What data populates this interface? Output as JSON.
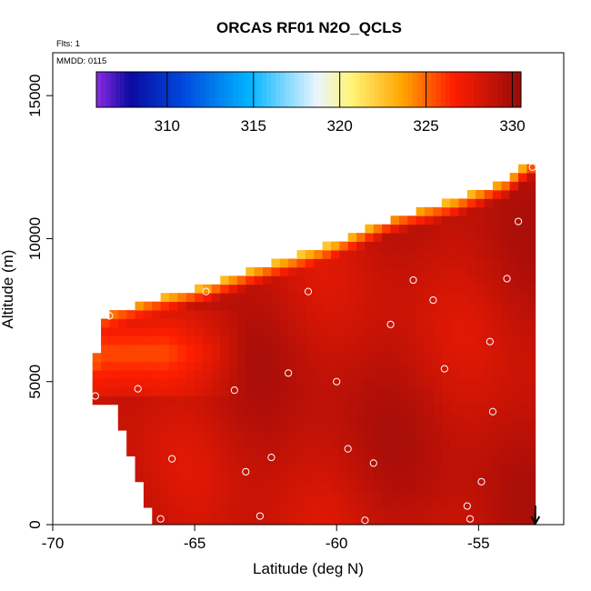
{
  "chart_data": {
    "type": "heatmap",
    "title": "ORCAS RF01 N2O_QCLS",
    "annotations": {
      "flights": "Flts: 1",
      "date": "MMDD: 0115"
    },
    "xlabel": "Latitude (deg N)",
    "ylabel": "Altitude (m)",
    "xlim": [
      -70,
      -52
    ],
    "ylim": [
      0,
      16500
    ],
    "x_ticks": [
      -70,
      -65,
      -60,
      -55
    ],
    "x_tick_labels": [
      "-70",
      "-65",
      "-60",
      "-55"
    ],
    "y_ticks": [
      0,
      5000,
      10000,
      15000
    ],
    "y_tick_labels": [
      "0",
      "5000",
      "10000",
      "15000"
    ],
    "colorbar": {
      "range": [
        305.9,
        330.5
      ],
      "ticks": [
        310,
        315,
        320,
        325,
        330
      ],
      "tick_labels": [
        "310",
        "315",
        "320",
        "325",
        "330"
      ],
      "orientation": "horizontal",
      "position": "top"
    },
    "domain_envelope": {
      "lat_min": -68.6,
      "lat_max": -53.2,
      "top_altitude": [
        [
          -68.6,
          4500
        ],
        [
          -68.3,
          7300
        ],
        [
          -66.5,
          7850
        ],
        [
          -64.5,
          8400
        ],
        [
          -62,
          9250
        ],
        [
          -60,
          9950
        ],
        [
          -58,
          10750
        ],
        [
          -56,
          11300
        ],
        [
          -54,
          12050
        ],
        [
          -53.2,
          12700
        ]
      ]
    },
    "field_model": {
      "base_n2o": 328.8,
      "strat_tropopause_offset_m": 600,
      "strat_gradient_ppb_per_m": 0.0105,
      "low_band": {
        "value": 325.5,
        "lat_from": -69,
        "lat_to": -63,
        "alt_from": 4500,
        "alt_to": 7500
      }
    },
    "flight_points": [
      {
        "lat": -66.2,
        "alt": 200
      },
      {
        "lat": -62.7,
        "alt": 300
      },
      {
        "lat": -59.0,
        "alt": 150
      },
      {
        "lat": -55.3,
        "alt": 200
      },
      {
        "lat": -55.4,
        "alt": 650
      },
      {
        "lat": -54.9,
        "alt": 1500
      },
      {
        "lat": -65.8,
        "alt": 2300
      },
      {
        "lat": -63.2,
        "alt": 1850
      },
      {
        "lat": -62.3,
        "alt": 2350
      },
      {
        "lat": -59.6,
        "alt": 2650
      },
      {
        "lat": -58.7,
        "alt": 2150
      },
      {
        "lat": -54.5,
        "alt": 3950
      },
      {
        "lat": -68.5,
        "alt": 4500
      },
      {
        "lat": -67.0,
        "alt": 4750
      },
      {
        "lat": -63.6,
        "alt": 4700
      },
      {
        "lat": -61.7,
        "alt": 5300
      },
      {
        "lat": -60.0,
        "alt": 5000
      },
      {
        "lat": -56.2,
        "alt": 5450
      },
      {
        "lat": -54.6,
        "alt": 6400
      },
      {
        "lat": -68.0,
        "alt": 7300
      },
      {
        "lat": -64.6,
        "alt": 8150
      },
      {
        "lat": -61.0,
        "alt": 8150
      },
      {
        "lat": -57.3,
        "alt": 8550
      },
      {
        "lat": -58.1,
        "alt": 7000
      },
      {
        "lat": -56.6,
        "alt": 7850
      },
      {
        "lat": -54.0,
        "alt": 8600
      },
      {
        "lat": -53.6,
        "alt": 10600
      },
      {
        "lat": -53.1,
        "alt": 12500
      }
    ],
    "marker": {
      "type": "arrow-down",
      "lat": -53.0,
      "label": ""
    }
  }
}
